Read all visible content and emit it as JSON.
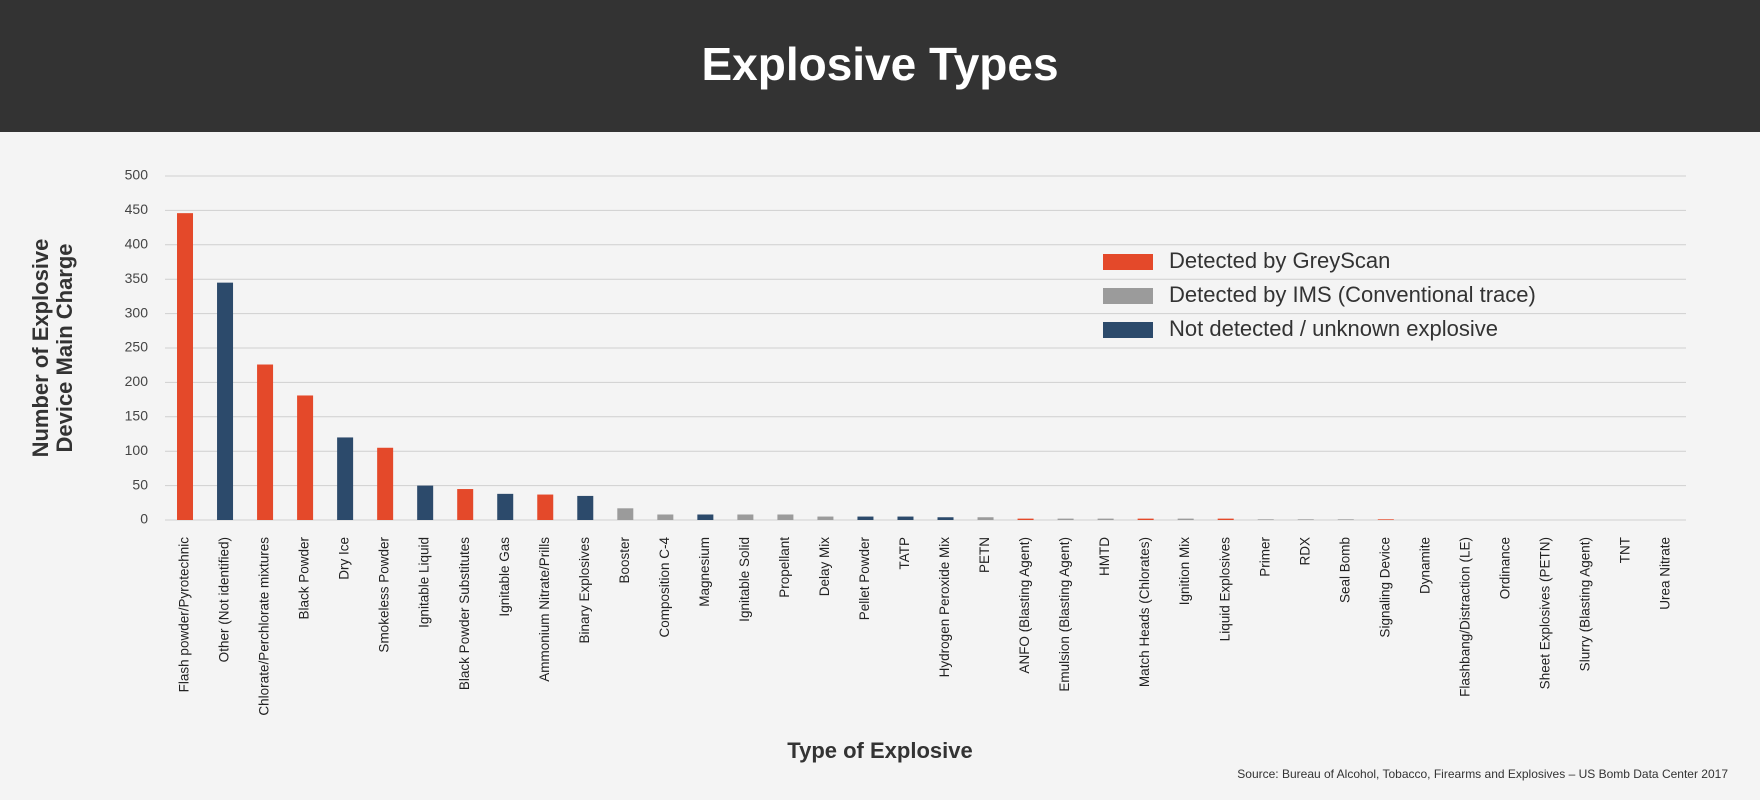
{
  "chart_data": {
    "type": "bar",
    "title": "Explosive Types",
    "ylabel": [
      "Number of Explosive",
      "Device Main Charge"
    ],
    "xlabel": "Type of Explosive",
    "source": "Source:  Bureau of Alcohol, Tobacco, Firearms and Explosives – US Bomb Data Center 2017",
    "categories": [
      "Flash powder/Pyrotechnic",
      "Other (Not identified)",
      "Chlorate/Perchlorate mixtures",
      "Black Powder",
      "Dry Ice",
      "Smokeless Powder",
      "Ignitable Liquid",
      "Black Powder Substitutes",
      "Ignitable Gas",
      "Ammonium Nitrate/Prills",
      "Binary Explosives",
      "Booster",
      "Composition C-4",
      "Magnesium",
      "Ignitable Solid",
      "Propellant",
      "Delay Mix",
      "Pellet Powder",
      "TATP",
      "Hydrogen Peroxide Mix",
      "PETN",
      "ANFO (Blasting Agent)",
      "Emulsion (Blasting Agent)",
      "HMTD",
      "Match Heads (Chlorates)",
      "Ignition Mix",
      "Liquid Explosives",
      "Primer",
      "RDX",
      "Seal Bomb",
      "Signaling Device",
      "Dynamite",
      "Flashbang/Distraction (LE)",
      "Ordinance",
      "Sheet Explosives (PETN)",
      "Slurry (Blasting Agent)",
      "TNT",
      "Urea Nitrate"
    ],
    "series": [
      {
        "name": "Detected by GreyScan",
        "color": "#e4492a",
        "values": [
          446,
          null,
          226,
          181,
          null,
          105,
          null,
          45,
          null,
          37,
          null,
          null,
          null,
          null,
          null,
          null,
          null,
          null,
          null,
          null,
          null,
          2,
          null,
          null,
          2,
          null,
          2,
          null,
          null,
          null,
          1,
          null,
          null,
          null,
          null,
          null,
          null,
          null
        ]
      },
      {
        "name": "Detected by IMS (Conventional trace)",
        "color": "#9b9b9b",
        "values": [
          null,
          null,
          null,
          null,
          null,
          null,
          null,
          null,
          null,
          null,
          null,
          17,
          8,
          null,
          8,
          8,
          5,
          null,
          null,
          null,
          4,
          null,
          2,
          2,
          null,
          2,
          null,
          1,
          1,
          1,
          null,
          null,
          null,
          null,
          null,
          null,
          null,
          null
        ]
      },
      {
        "name": "Not detected / unknown explosive",
        "color": "#2c4a6b",
        "values": [
          null,
          345,
          null,
          null,
          120,
          null,
          50,
          null,
          38,
          null,
          35,
          null,
          null,
          8,
          null,
          null,
          null,
          5,
          5,
          4,
          null,
          null,
          null,
          null,
          null,
          null,
          null,
          null,
          null,
          null,
          null,
          null,
          null,
          null,
          null,
          null,
          null,
          null
        ]
      }
    ],
    "ylim": [
      0,
      500
    ],
    "yticks": [
      0,
      50,
      100,
      150,
      200,
      250,
      300,
      350,
      400,
      450,
      500
    ],
    "grid": true
  }
}
